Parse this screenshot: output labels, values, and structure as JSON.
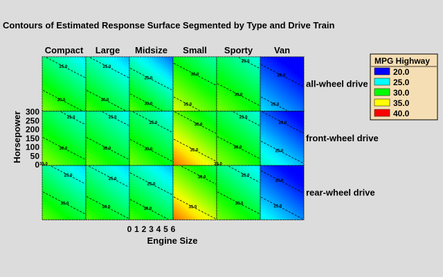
{
  "chart_data": {
    "type": "heatmap",
    "title": "Contours of Estimated Response Surface Segmented by Type and Drive Train",
    "xlabel": "Engine Size",
    "ylabel": "Horsepower",
    "xlim": [
      0,
      6
    ],
    "ylim": [
      0,
      300
    ],
    "x_ticks": [
      "0",
      "1",
      "2",
      "3",
      "4",
      "5",
      "6"
    ],
    "y_ticks": [
      "300",
      "250",
      "200",
      "150",
      "100",
      "50",
      "0"
    ],
    "columns": [
      "Compact",
      "Large",
      "Midsize",
      "Small",
      "Sporty",
      "Van"
    ],
    "rows": [
      "all-wheel drive",
      "front-wheel drive",
      "rear-wheel drive"
    ],
    "legend": {
      "title": "MPG Highway",
      "position": "right",
      "entries": [
        {
          "label": "20.0",
          "value": 20,
          "color": "#0000ff"
        },
        {
          "label": "25.0",
          "value": 25,
          "color": "#00ffff"
        },
        {
          "label": "30.0",
          "value": 30,
          "color": "#00ff00"
        },
        {
          "label": "35.0",
          "value": 35,
          "color": "#ffff00"
        },
        {
          "label": "40.0",
          "value": 40,
          "color": "#ff0000"
        }
      ]
    },
    "surfaces": [
      {
        "row": "all-wheel drive",
        "column": "Compact",
        "value_at_origin": 32.5,
        "value_at_max": 24.5
      },
      {
        "row": "all-wheel drive",
        "column": "Large",
        "value_at_origin": 31.5,
        "value_at_max": 23.5
      },
      {
        "row": "all-wheel drive",
        "column": "Midsize",
        "value_at_origin": 32,
        "value_at_max": 22
      },
      {
        "row": "all-wheel drive",
        "column": "Small",
        "value_at_origin": 34.5,
        "value_at_max": 26.5
      },
      {
        "row": "all-wheel drive",
        "column": "Sporty",
        "value_at_origin": 32.5,
        "value_at_max": 25.5
      },
      {
        "row": "all-wheel drive",
        "column": "Van",
        "value_at_origin": 24.5,
        "value_at_max": 18.5
      },
      {
        "row": "front-wheel drive",
        "column": "Compact",
        "value_at_origin": 33,
        "value_at_max": 25.5
      },
      {
        "row": "front-wheel drive",
        "column": "Large",
        "value_at_origin": 32,
        "value_at_max": 25
      },
      {
        "row": "front-wheel drive",
        "column": "Midsize",
        "value_at_origin": 32.5,
        "value_at_max": 25
      },
      {
        "row": "front-wheel drive",
        "column": "Small",
        "value_at_origin": 38,
        "value_at_max": 28
      },
      {
        "row": "front-wheel drive",
        "column": "Sporty",
        "value_at_origin": 33,
        "value_at_max": 25.5
      },
      {
        "row": "front-wheel drive",
        "column": "Van",
        "value_at_origin": 26.5,
        "value_at_max": 19
      },
      {
        "row": "rear-wheel drive",
        "column": "Compact",
        "value_at_origin": 32,
        "value_at_max": 24
      },
      {
        "row": "rear-wheel drive",
        "column": "Large",
        "value_at_origin": 31.5,
        "value_at_max": 24
      },
      {
        "row": "rear-wheel drive",
        "column": "Midsize",
        "value_at_origin": 31.5,
        "value_at_max": 23.5
      },
      {
        "row": "rear-wheel drive",
        "column": "Small",
        "value_at_origin": 38,
        "value_at_max": 28
      },
      {
        "row": "rear-wheel drive",
        "column": "Sporty",
        "value_at_origin": 32.5,
        "value_at_max": 24.5
      },
      {
        "row": "rear-wheel drive",
        "column": "Van",
        "value_at_origin": 25.5,
        "value_at_max": 18.5
      }
    ],
    "contours": [
      {
        "row": "all-wheel drive",
        "column": "Compact",
        "level": "25.0",
        "x": 2.9,
        "y": 250
      },
      {
        "row": "all-wheel drive",
        "column": "Compact",
        "level": "30.0",
        "x": 2.6,
        "y": 60
      },
      {
        "row": "all-wheel drive",
        "column": "Large",
        "level": "25.0",
        "x": 2.9,
        "y": 250
      },
      {
        "row": "all-wheel drive",
        "column": "Large",
        "level": "30.0",
        "x": 2.6,
        "y": 60
      },
      {
        "row": "all-wheel drive",
        "column": "Midsize",
        "level": "25.0",
        "x": 2.6,
        "y": 185
      },
      {
        "row": "all-wheel drive",
        "column": "Midsize",
        "level": "30.0",
        "x": 2.6,
        "y": 40
      },
      {
        "row": "all-wheel drive",
        "column": "Small",
        "level": "30.0",
        "x": 3.0,
        "y": 205
      },
      {
        "row": "all-wheel drive",
        "column": "Small",
        "level": "35.0",
        "x": 2.0,
        "y": 35
      },
      {
        "row": "all-wheel drive",
        "column": "Sporty",
        "level": "25.0",
        "x": 4.0,
        "y": 280
      },
      {
        "row": "all-wheel drive",
        "column": "Sporty",
        "level": "30.0",
        "x": 3.0,
        "y": 90
      },
      {
        "row": "all-wheel drive",
        "column": "Van",
        "level": "20.0",
        "x": 2.9,
        "y": 200
      },
      {
        "row": "all-wheel drive",
        "column": "Van",
        "level": "25.0",
        "x": 2.0,
        "y": 35
      },
      {
        "row": "front-wheel drive",
        "column": "Compact",
        "level": "25.0",
        "x": 4.0,
        "y": 270
      },
      {
        "row": "front-wheel drive",
        "column": "Compact",
        "level": "30.0",
        "x": 2.9,
        "y": 95
      },
      {
        "row": "front-wheel drive",
        "column": "Compact",
        "level": "35.0",
        "x": 0.1,
        "y": 5
      },
      {
        "row": "front-wheel drive",
        "column": "Large",
        "level": "25.0",
        "x": 3.7,
        "y": 270
      },
      {
        "row": "front-wheel drive",
        "column": "Large",
        "level": "30.0",
        "x": 2.9,
        "y": 95
      },
      {
        "row": "front-wheel drive",
        "column": "Midsize",
        "level": "25.0",
        "x": 3.3,
        "y": 240
      },
      {
        "row": "front-wheel drive",
        "column": "Midsize",
        "level": "30.0",
        "x": 2.6,
        "y": 90
      },
      {
        "row": "front-wheel drive",
        "column": "Small",
        "level": "30.0",
        "x": 3.5,
        "y": 230
      },
      {
        "row": "front-wheel drive",
        "column": "Small",
        "level": "35.0",
        "x": 2.9,
        "y": 85
      },
      {
        "row": "front-wheel drive",
        "column": "Sporty",
        "level": "25.0",
        "x": 3.7,
        "y": 270
      },
      {
        "row": "front-wheel drive",
        "column": "Sporty",
        "level": "30.0",
        "x": 2.9,
        "y": 100
      },
      {
        "row": "front-wheel drive",
        "column": "Sporty",
        "level": "35.0",
        "x": 0.1,
        "y": 5
      },
      {
        "row": "front-wheel drive",
        "column": "Van",
        "level": "20.0",
        "x": 3.1,
        "y": 240
      },
      {
        "row": "front-wheel drive",
        "column": "Van",
        "level": "25.0",
        "x": 2.6,
        "y": 80
      },
      {
        "row": "rear-wheel drive",
        "column": "Compact",
        "level": "25.0",
        "x": 3.6,
        "y": 250
      },
      {
        "row": "rear-wheel drive",
        "column": "Compact",
        "level": "30.0",
        "x": 3.1,
        "y": 90
      },
      {
        "row": "rear-wheel drive",
        "column": "Large",
        "level": "25.0",
        "x": 3.7,
        "y": 230
      },
      {
        "row": "rear-wheel drive",
        "column": "Large",
        "level": "30.0",
        "x": 2.8,
        "y": 70
      },
      {
        "row": "rear-wheel drive",
        "column": "Midsize",
        "level": "25.0",
        "x": 3.0,
        "y": 200
      },
      {
        "row": "rear-wheel drive",
        "column": "Midsize",
        "level": "30.0",
        "x": 2.5,
        "y": 60
      },
      {
        "row": "rear-wheel drive",
        "column": "Small",
        "level": "30.0",
        "x": 4.0,
        "y": 240
      },
      {
        "row": "rear-wheel drive",
        "column": "Small",
        "level": "35.0",
        "x": 2.7,
        "y": 70
      },
      {
        "row": "rear-wheel drive",
        "column": "Sporty",
        "level": "25.0",
        "x": 4.0,
        "y": 250
      },
      {
        "row": "rear-wheel drive",
        "column": "Sporty",
        "level": "30.0",
        "x": 3.1,
        "y": 90
      },
      {
        "row": "rear-wheel drive",
        "column": "Van",
        "level": "20.0",
        "x": 2.6,
        "y": 220
      },
      {
        "row": "rear-wheel drive",
        "column": "Van",
        "level": "25.0",
        "x": 2.4,
        "y": 75
      }
    ]
  }
}
